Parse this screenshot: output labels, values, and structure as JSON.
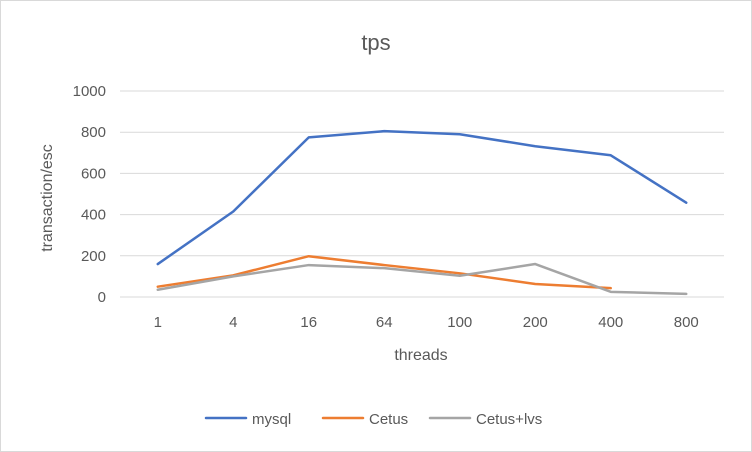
{
  "chart_data": {
    "type": "line",
    "title": "tps",
    "xlabel": "threads",
    "ylabel": "transaction/esc",
    "categories": [
      "1",
      "4",
      "16",
      "64",
      "100",
      "200",
      "400",
      "800"
    ],
    "ylim": [
      0,
      1000
    ],
    "yticks": [
      "0",
      "200",
      "400",
      "600",
      "800",
      "1000"
    ],
    "grid": true,
    "legend_position": "bottom",
    "series": [
      {
        "name": "mysql",
        "color": "#4472C4",
        "values": [
          160,
          415,
          775,
          805,
          790,
          732,
          688,
          458
        ]
      },
      {
        "name": "Cetus",
        "color": "#ED7D31",
        "values": [
          50,
          105,
          198,
          155,
          115,
          63,
          43,
          null
        ]
      },
      {
        "name": "Cetus+lvs",
        "color": "#A5A5A5",
        "values": [
          35,
          100,
          155,
          140,
          103,
          160,
          25,
          15
        ]
      }
    ]
  }
}
